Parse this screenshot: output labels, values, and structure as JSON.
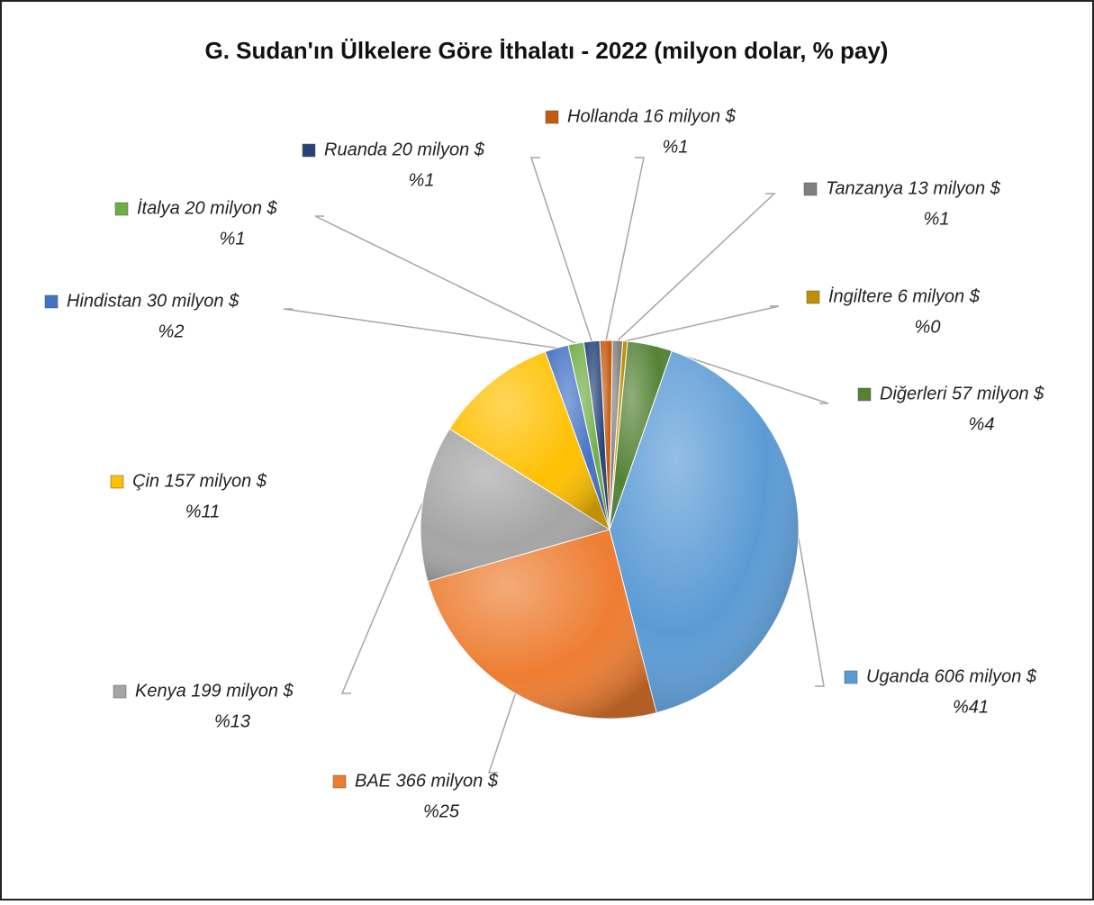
{
  "chart_data": {
    "type": "pie",
    "title": "G. Sudan'ın Ülkelere Göre İthalatı - 2022 (milyon dolar, % pay)",
    "values": [
      16,
      13,
      6,
      57,
      606,
      366,
      199,
      157,
      30,
      20,
      20
    ],
    "value_labels": [
      "Hollanda 16 milyon $",
      "Tanzanya 13 milyon $",
      "İngiltere 6 milyon $",
      "Diğerleri 57 milyon $",
      "Uganda 606 milyon $",
      "BAE 366 milyon $",
      "Kenya 199 milyon $",
      "Çin 157 milyon $",
      "Hindistan 30 milyon $",
      "İtalya 20 milyon $",
      "Ruanda 20 milyon $"
    ],
    "shares": [
      1,
      1,
      0,
      4,
      41,
      25,
      13,
      11,
      2,
      1,
      1
    ],
    "share_labels": [
      "%1",
      "%1",
      "%0",
      "%4",
      "%41",
      "%25",
      "%13",
      "%11",
      "%2",
      "%1",
      "%1"
    ],
    "colors": [
      "#c55a11",
      "#7f7f7f",
      "#bf9000",
      "#548235",
      "#5b9bd5",
      "#ed7d31",
      "#a5a5a5",
      "#ffc000",
      "#4472c4",
      "#70ad47",
      "#264478"
    ]
  }
}
